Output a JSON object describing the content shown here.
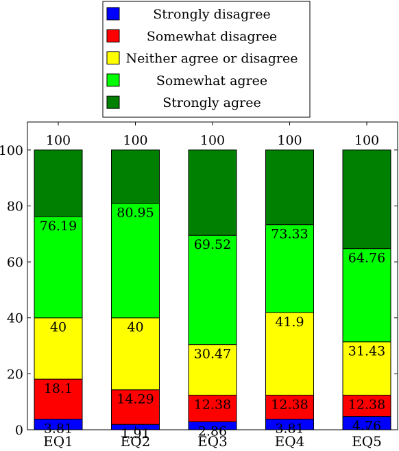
{
  "chart_data": {
    "type": "bar",
    "stacked": true,
    "categories": [
      "EQ1",
      "EQ2",
      "EQ3",
      "EQ4",
      "EQ5"
    ],
    "series": [
      {
        "name": "Strongly disagree",
        "color": "#0000ff",
        "values": [
          3.81,
          1.91,
          2.86,
          3.81,
          4.76
        ]
      },
      {
        "name": "Somewhat disagree",
        "color": "#ff0000",
        "values": [
          14.29,
          12.38,
          9.52,
          8.57,
          7.62
        ]
      },
      {
        "name": "Neither agree or disagree",
        "color": "#ffff00",
        "values": [
          21.9,
          25.71,
          18.09,
          29.52,
          19.05
        ]
      },
      {
        "name": "Somewhat agree",
        "color": "#00ff00",
        "values": [
          36.19,
          40.95,
          39.05,
          31.43,
          33.33
        ]
      },
      {
        "name": "Strongly agree",
        "color": "#008000",
        "values": [
          23.81,
          19.05,
          30.48,
          26.67,
          35.24
        ]
      }
    ],
    "segment_labels": [
      [
        "3.81",
        "18.1",
        "40",
        "76.19",
        "100"
      ],
      [
        "1.91",
        "14.29",
        "40",
        "80.95",
        "100"
      ],
      [
        "2.86",
        "12.38",
        "30.47",
        "69.52",
        "100"
      ],
      [
        "3.81",
        "12.38",
        "41.9",
        "73.33",
        "100"
      ],
      [
        "4.76",
        "12.38",
        "31.43",
        "64.76",
        "100"
      ]
    ],
    "ylim": [
      0,
      110
    ],
    "yticks": [
      0,
      20,
      40,
      60,
      80,
      100
    ],
    "legend_position": "top-center",
    "grid": false,
    "title": "",
    "xlabel": "",
    "ylabel": ""
  }
}
